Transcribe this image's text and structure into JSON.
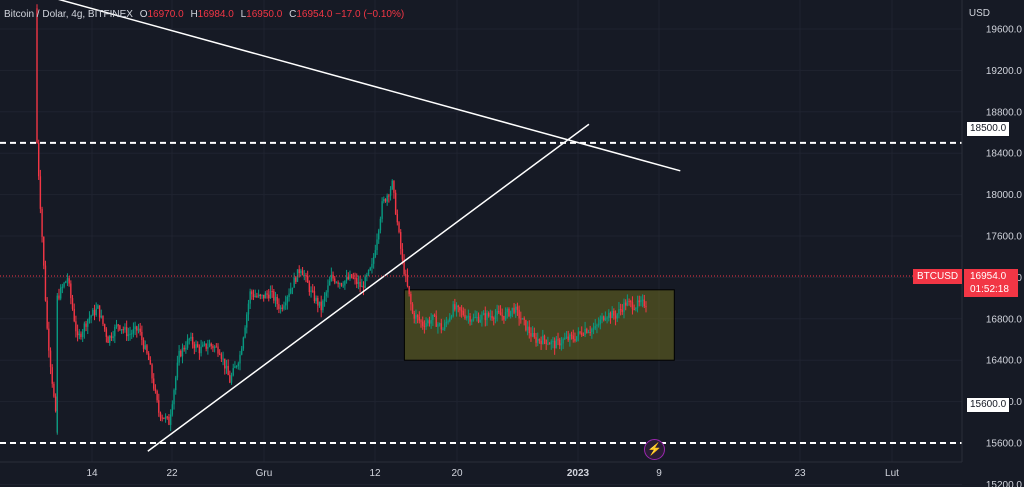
{
  "legend": {
    "symbol": "Bitcoin / Dolar, 4g, BITFINEX",
    "o_label": "O",
    "o_value": "16970.0",
    "h_label": "H",
    "h_value": "16984.0",
    "l_label": "L",
    "l_value": "16950.0",
    "c_label": "C",
    "c_value": "16954.0",
    "change": "−17.0 (−0.10%)"
  },
  "currency": "USD",
  "symbol_tag": "BTCUSD",
  "price_tag": "16954.0",
  "countdown": "01:52:18",
  "level_tags": {
    "upper": "18500.0",
    "lower": "15600.0"
  },
  "bolt_icon": "lightning-icon",
  "chart_data": {
    "type": "candlestick",
    "y_axis": {
      "ticks": [
        19600,
        19200,
        18800,
        18400,
        18000,
        17600,
        17200,
        16800,
        16400,
        16000,
        15600,
        15200
      ],
      "range": [
        15000,
        19850
      ],
      "position": "right"
    },
    "x_axis": {
      "ticks": [
        "14",
        "22",
        "Gru",
        "12",
        "20",
        "2023",
        "9",
        "23",
        "Lut"
      ]
    },
    "last_price": 16954.0,
    "horizontal_levels": [
      18500,
      15600
    ],
    "trendlines": [
      {
        "label": "",
        "from": [
          "Nov 21",
          15520
        ],
        "to": [
          "Jan 1",
          18680
        ]
      },
      {
        "label": "",
        "from": [
          "Nov 8",
          20000
        ],
        "to": [
          "Jan 10",
          18230
        ]
      }
    ],
    "range_box": {
      "from": "Dec 15",
      "to": "Jan 10",
      "price_top": 17080,
      "price_bottom": 16400
    },
    "price_path": [
      [
        "Nov 9",
        19800
      ],
      [
        "Nov 9",
        18500
      ],
      [
        "Nov 10",
        16700
      ],
      [
        "Nov 11",
        15700
      ],
      [
        "Nov 11",
        17000
      ],
      [
        "Nov 12",
        17200
      ],
      [
        "Nov 13",
        16600
      ],
      [
        "Nov 14",
        16800
      ],
      [
        "Nov 15",
        16900
      ],
      [
        "Nov 16",
        16600
      ],
      [
        "Nov 17",
        16750
      ],
      [
        "Nov 18",
        16650
      ],
      [
        "Nov 19",
        16700
      ],
      [
        "Nov 20",
        16400
      ],
      [
        "Nov 21",
        15900
      ],
      [
        "Nov 22",
        15800
      ],
      [
        "Nov 23",
        16450
      ],
      [
        "Nov 24",
        16600
      ],
      [
        "Nov 25",
        16500
      ],
      [
        "Nov 26",
        16550
      ],
      [
        "Nov 27",
        16500
      ],
      [
        "Nov 28",
        16200
      ],
      [
        "Nov 29",
        16450
      ],
      [
        "Nov 30",
        17050
      ],
      [
        "Dec 1",
        17000
      ],
      [
        "Dec 2",
        17050
      ],
      [
        "Dec 3",
        16900
      ],
      [
        "Dec 4",
        17100
      ],
      [
        "Dec 5",
        17300
      ],
      [
        "Dec 6",
        17050
      ],
      [
        "Dec 7",
        16900
      ],
      [
        "Dec 8",
        17200
      ],
      [
        "Dec 9",
        17150
      ],
      [
        "Dec 10",
        17200
      ],
      [
        "Dec 11",
        17100
      ],
      [
        "Dec 12",
        17300
      ],
      [
        "Dec 13",
        17900
      ],
      [
        "Dec 14",
        18100
      ],
      [
        "Dec 15",
        17350
      ],
      [
        "Dec 16",
        16850
      ],
      [
        "Dec 17",
        16750
      ],
      [
        "Dec 18",
        16800
      ],
      [
        "Dec 19",
        16700
      ],
      [
        "Dec 20",
        16900
      ],
      [
        "Dec 21",
        16850
      ],
      [
        "Dec 22",
        16800
      ],
      [
        "Dec 23",
        16820
      ],
      [
        "Dec 24",
        16840
      ],
      [
        "Dec 25",
        16830
      ],
      [
        "Dec 26",
        16900
      ],
      [
        "Dec 27",
        16750
      ],
      [
        "Dec 28",
        16600
      ],
      [
        "Dec 29",
        16600
      ],
      [
        "Dec 30",
        16550
      ],
      [
        "Dec 31",
        16600
      ],
      [
        "Jan 1",
        16620
      ],
      [
        "Jan 2",
        16700
      ],
      [
        "Jan 3",
        16700
      ],
      [
        "Jan 4",
        16850
      ],
      [
        "Jan 5",
        16830
      ],
      [
        "Jan 6",
        16950
      ],
      [
        "Jan 7",
        16930
      ],
      [
        "Jan 8",
        16954
      ]
    ]
  }
}
